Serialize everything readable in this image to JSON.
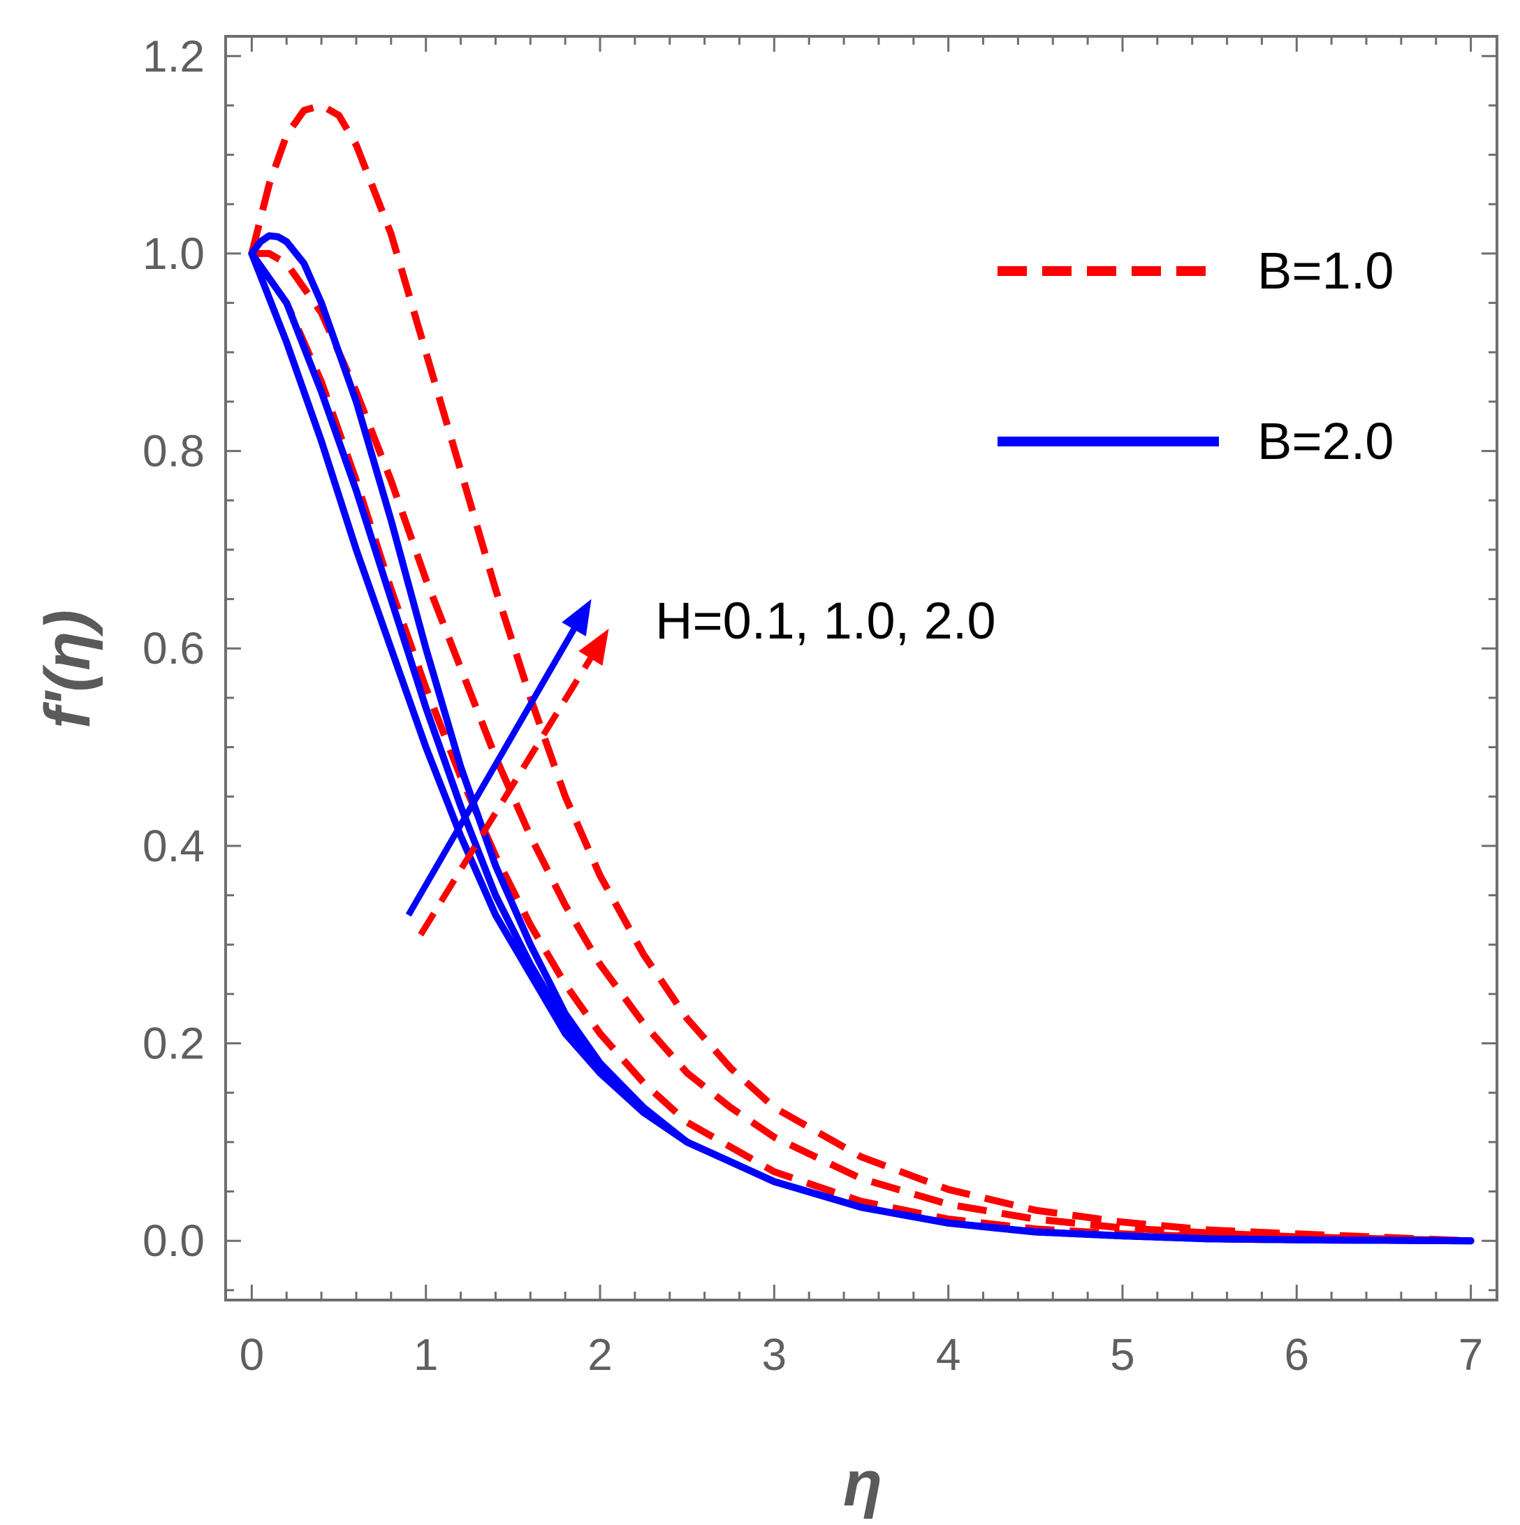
{
  "chart_data": {
    "type": "line",
    "title": "",
    "xlabel": "η",
    "ylabel": "f'(η)",
    "xlim": [
      -0.15,
      7.15
    ],
    "ylim": [
      -0.06,
      1.22
    ],
    "x_ticks": [
      0,
      1,
      2,
      3,
      4,
      5,
      6,
      7
    ],
    "x_tick_labels": [
      "0",
      "1",
      "2",
      "3",
      "4",
      "5",
      "6",
      "7"
    ],
    "y_ticks": [
      0.0,
      0.2,
      0.4,
      0.6,
      0.8,
      1.0,
      1.2
    ],
    "y_tick_labels": [
      "0.0",
      "0.2",
      "0.4",
      "0.6",
      "0.8",
      "1.0",
      "1.2"
    ],
    "grid": false,
    "legend_position": "top-right",
    "legend": [
      {
        "label": "B=1.0",
        "color": "#ff0000",
        "style": "dashed"
      },
      {
        "label": "B=2.0",
        "color": "#0000ff",
        "style": "solid"
      }
    ],
    "annotation": {
      "text": "H=0.1, 1.0, 2.0",
      "meaning": "arrows point in direction of increasing H"
    },
    "arrows": [
      {
        "color": "#ff0000",
        "style": "dashed",
        "from": [
          0.97,
          0.31
        ],
        "to": [
          2.05,
          0.62
        ]
      },
      {
        "color": "#0000ff",
        "style": "solid",
        "from": [
          0.9,
          0.33
        ],
        "to": [
          1.95,
          0.65
        ]
      }
    ],
    "series": [
      {
        "group": "B=1.0",
        "color": "#ff0000",
        "style": "dashed",
        "x": [
          0,
          0.2,
          0.4,
          0.6,
          0.8,
          1.0,
          1.2,
          1.4,
          1.6,
          1.8,
          2.0,
          2.25,
          2.5,
          2.75,
          3.0,
          3.5,
          4.0,
          4.5,
          5.0,
          5.5,
          6.0,
          7.0
        ],
        "y": [
          1.0,
          0.95,
          0.87,
          0.77,
          0.66,
          0.56,
          0.47,
          0.39,
          0.32,
          0.26,
          0.21,
          0.16,
          0.12,
          0.095,
          0.07,
          0.04,
          0.022,
          0.012,
          0.007,
          0.004,
          0.002,
          0.0
        ]
      },
      {
        "group": "B=1.0",
        "color": "#ff0000",
        "style": "dashed",
        "x": [
          0,
          0.1,
          0.2,
          0.4,
          0.6,
          0.8,
          1.0,
          1.2,
          1.4,
          1.6,
          1.8,
          2.0,
          2.25,
          2.5,
          2.75,
          3.0,
          3.5,
          4.0,
          4.5,
          5.0,
          5.5,
          6.0,
          7.0
        ],
        "y": [
          1.0,
          1.0,
          0.99,
          0.94,
          0.86,
          0.77,
          0.67,
          0.58,
          0.49,
          0.41,
          0.34,
          0.28,
          0.22,
          0.17,
          0.135,
          0.105,
          0.063,
          0.037,
          0.022,
          0.013,
          0.008,
          0.004,
          0.0
        ]
      },
      {
        "group": "B=1.0",
        "color": "#ff0000",
        "style": "dashed",
        "x": [
          0,
          0.1,
          0.2,
          0.3,
          0.4,
          0.5,
          0.6,
          0.8,
          1.0,
          1.2,
          1.4,
          1.6,
          1.8,
          2.0,
          2.25,
          2.5,
          2.75,
          3.0,
          3.5,
          4.0,
          4.5,
          5.0,
          5.5,
          6.0,
          7.0
        ],
        "y": [
          1.0,
          1.07,
          1.12,
          1.145,
          1.15,
          1.14,
          1.11,
          1.02,
          0.9,
          0.78,
          0.66,
          0.55,
          0.45,
          0.37,
          0.29,
          0.225,
          0.175,
          0.135,
          0.085,
          0.052,
          0.031,
          0.019,
          0.011,
          0.007,
          0.0
        ]
      },
      {
        "group": "B=2.0",
        "color": "#0000ff",
        "style": "solid",
        "x": [
          0,
          0.2,
          0.4,
          0.6,
          0.8,
          1.0,
          1.2,
          1.4,
          1.6,
          1.8,
          2.0,
          2.25,
          2.5,
          2.75,
          3.0,
          3.5,
          4.0,
          4.5,
          5.0,
          5.5,
          6.0,
          7.0
        ],
        "y": [
          1.0,
          0.91,
          0.81,
          0.7,
          0.6,
          0.5,
          0.41,
          0.33,
          0.27,
          0.21,
          0.17,
          0.13,
          0.1,
          0.08,
          0.06,
          0.034,
          0.018,
          0.009,
          0.005,
          0.002,
          0.001,
          0.0
        ]
      },
      {
        "group": "B=2.0",
        "color": "#0000ff",
        "style": "solid",
        "x": [
          0,
          0.2,
          0.4,
          0.6,
          0.8,
          1.0,
          1.2,
          1.4,
          1.6,
          1.8,
          2.0,
          2.25,
          2.5,
          2.75,
          3.0,
          3.5,
          4.0,
          4.5,
          5.0,
          5.5,
          6.0,
          7.0
        ],
        "y": [
          1.0,
          0.95,
          0.86,
          0.76,
          0.65,
          0.54,
          0.44,
          0.35,
          0.28,
          0.22,
          0.17,
          0.13,
          0.1,
          0.08,
          0.06,
          0.034,
          0.018,
          0.009,
          0.005,
          0.002,
          0.001,
          0.0
        ]
      },
      {
        "group": "B=2.0",
        "color": "#0000ff",
        "style": "solid",
        "x": [
          0,
          0.05,
          0.1,
          0.15,
          0.2,
          0.3,
          0.4,
          0.6,
          0.8,
          1.0,
          1.2,
          1.4,
          1.6,
          1.8,
          2.0,
          2.25,
          2.5,
          2.75,
          3.0,
          3.5,
          4.0,
          4.5,
          5.0,
          5.5,
          6.0,
          7.0
        ],
        "y": [
          1.0,
          1.012,
          1.018,
          1.017,
          1.012,
          0.99,
          0.95,
          0.85,
          0.73,
          0.6,
          0.48,
          0.38,
          0.3,
          0.23,
          0.18,
          0.135,
          0.1,
          0.08,
          0.06,
          0.034,
          0.018,
          0.009,
          0.005,
          0.002,
          0.001,
          0.0
        ]
      }
    ]
  }
}
